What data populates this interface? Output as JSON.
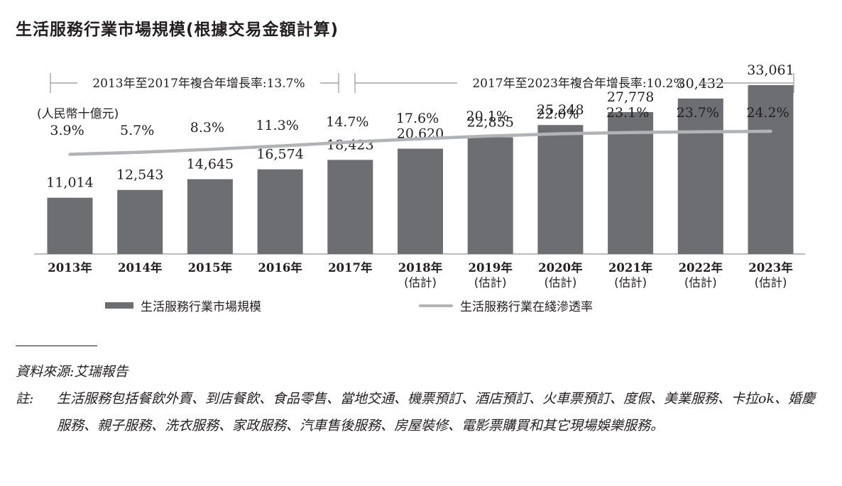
{
  "title": "生活服務行業市場規模(根據交易金額計算)",
  "chart_data": {
    "type": "bar",
    "unit_label": "(人民幣十億元)",
    "categories": [
      "2013年",
      "2014年",
      "2015年",
      "2016年",
      "2017年",
      "2018年\n(估計)",
      "2019年\n(估計)",
      "2020年\n(估計)",
      "2021年\n(估計)",
      "2022年\n(估計)",
      "2023年\n(估計)"
    ],
    "category_lines": [
      [
        "2013年"
      ],
      [
        "2014年"
      ],
      [
        "2015年"
      ],
      [
        "2016年"
      ],
      [
        "2017年"
      ],
      [
        "2018年",
        "(估計)"
      ],
      [
        "2019年",
        "(估計)"
      ],
      [
        "2020年",
        "(估計)"
      ],
      [
        "2021年",
        "(估計)"
      ],
      [
        "2022年",
        "(估計)"
      ],
      [
        "2023年",
        "(估計)"
      ]
    ],
    "series": [
      {
        "name": "生活服務行業市場規模",
        "type": "bar",
        "values": [
          11014,
          12543,
          14645,
          16574,
          18423,
          20620,
          22855,
          25248,
          27778,
          30432,
          33061
        ],
        "labels": [
          "11,014",
          "12,543",
          "14,645",
          "16,574",
          "18,423",
          "20,620",
          "22,855",
          "25,248",
          "27,778",
          "30,432",
          "33,061"
        ],
        "color": "#6d6e71"
      },
      {
        "name": "生活服務行業在綫滲透率",
        "type": "line",
        "values": [
          3.9,
          5.7,
          8.3,
          11.3,
          14.7,
          17.6,
          20.1,
          22.0,
          23.1,
          23.7,
          24.2
        ],
        "labels": [
          "3.9%",
          "5.7%",
          "8.3%",
          "11.3%",
          "14.7%",
          "17.6%",
          "20.1%",
          "22.0%",
          "23.1%",
          "23.7%",
          "24.2%"
        ],
        "color": "#b1b3b6"
      }
    ],
    "cagr": [
      {
        "label": "2013年至2017年複合年增長率:13.7%",
        "from": "2013年",
        "to": "2017年"
      },
      {
        "label": "2017年至2023年複合年增長率:10.2%",
        "from": "2017年",
        "to": "2023年"
      }
    ],
    "ylim": [
      0,
      36000
    ],
    "grid": false,
    "legend_position": "bottom"
  },
  "notes": {
    "source_label": "資料來源:",
    "source_text": "艾瑞報告",
    "note_label": "註:",
    "note_text": "生活服務包括餐飲外賣、到店餐飲、食品零售、當地交通、機票預訂、酒店預訂、火車票預訂、度假、美業服務、卡拉ok、婚慶服務、親子服務、洗衣服務、家政服務、汽車售後服務、房屋裝修、電影票購買和其它現場娛樂服務。"
  }
}
